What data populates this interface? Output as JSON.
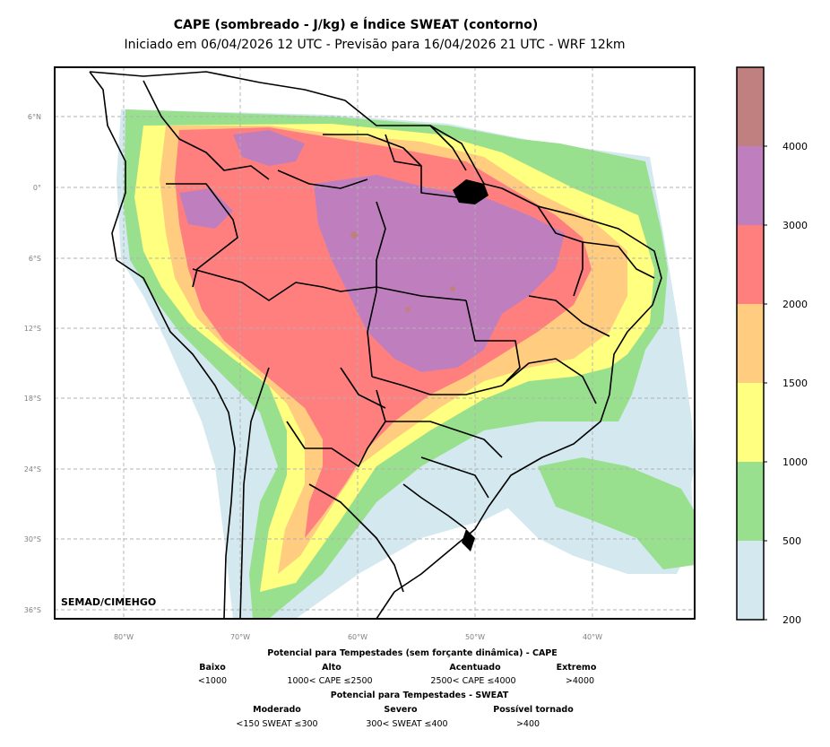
{
  "title": "CAPE (sombreado - J/kg) e Índice SWEAT (contorno)",
  "subtitle": "Iniciado em 06/04/2026 12 UTC - Previsão para 16/04/2026 21 UTC - WRF 12km",
  "credit": "SEMAD/CIMEHGO",
  "lat_labels": [
    "6°N",
    "0°",
    "6°S",
    "12°S",
    "18°S",
    "24°S",
    "30°S",
    "36°S"
  ],
  "lon_labels": [
    "80°W",
    "70°W",
    "60°W",
    "50°W",
    "40°W"
  ],
  "colorbar": {
    "ticks": [
      "200",
      "500",
      "1000",
      "1500",
      "2000",
      "3000",
      "4000"
    ],
    "colors": [
      "#d4e9ef",
      "#98e08e",
      "#ffff80",
      "#ffcc80",
      "#ff7f7f",
      "#bf7fbf",
      "#c08080"
    ]
  },
  "legend": {
    "cape_heading": "Potencial para Tempestades (sem forçante dinâmica) - CAPE",
    "cape_levels": [
      {
        "name": "Baixo",
        "range": "<1000"
      },
      {
        "name": "Alto",
        "range": "1000< CAPE ≤2500"
      },
      {
        "name": "Acentuado",
        "range": "2500< CAPE ≤4000"
      },
      {
        "name": "Extremo",
        "range": ">4000"
      }
    ],
    "sweat_heading": "Potencial para Tempestades - SWEAT",
    "sweat_levels": [
      {
        "name": "Moderado",
        "range": "<150 SWEAT ≤300"
      },
      {
        "name": "Severo",
        "range": "300< SWEAT ≤400"
      },
      {
        "name": "Possível tornado",
        "range": ">400"
      }
    ]
  }
}
